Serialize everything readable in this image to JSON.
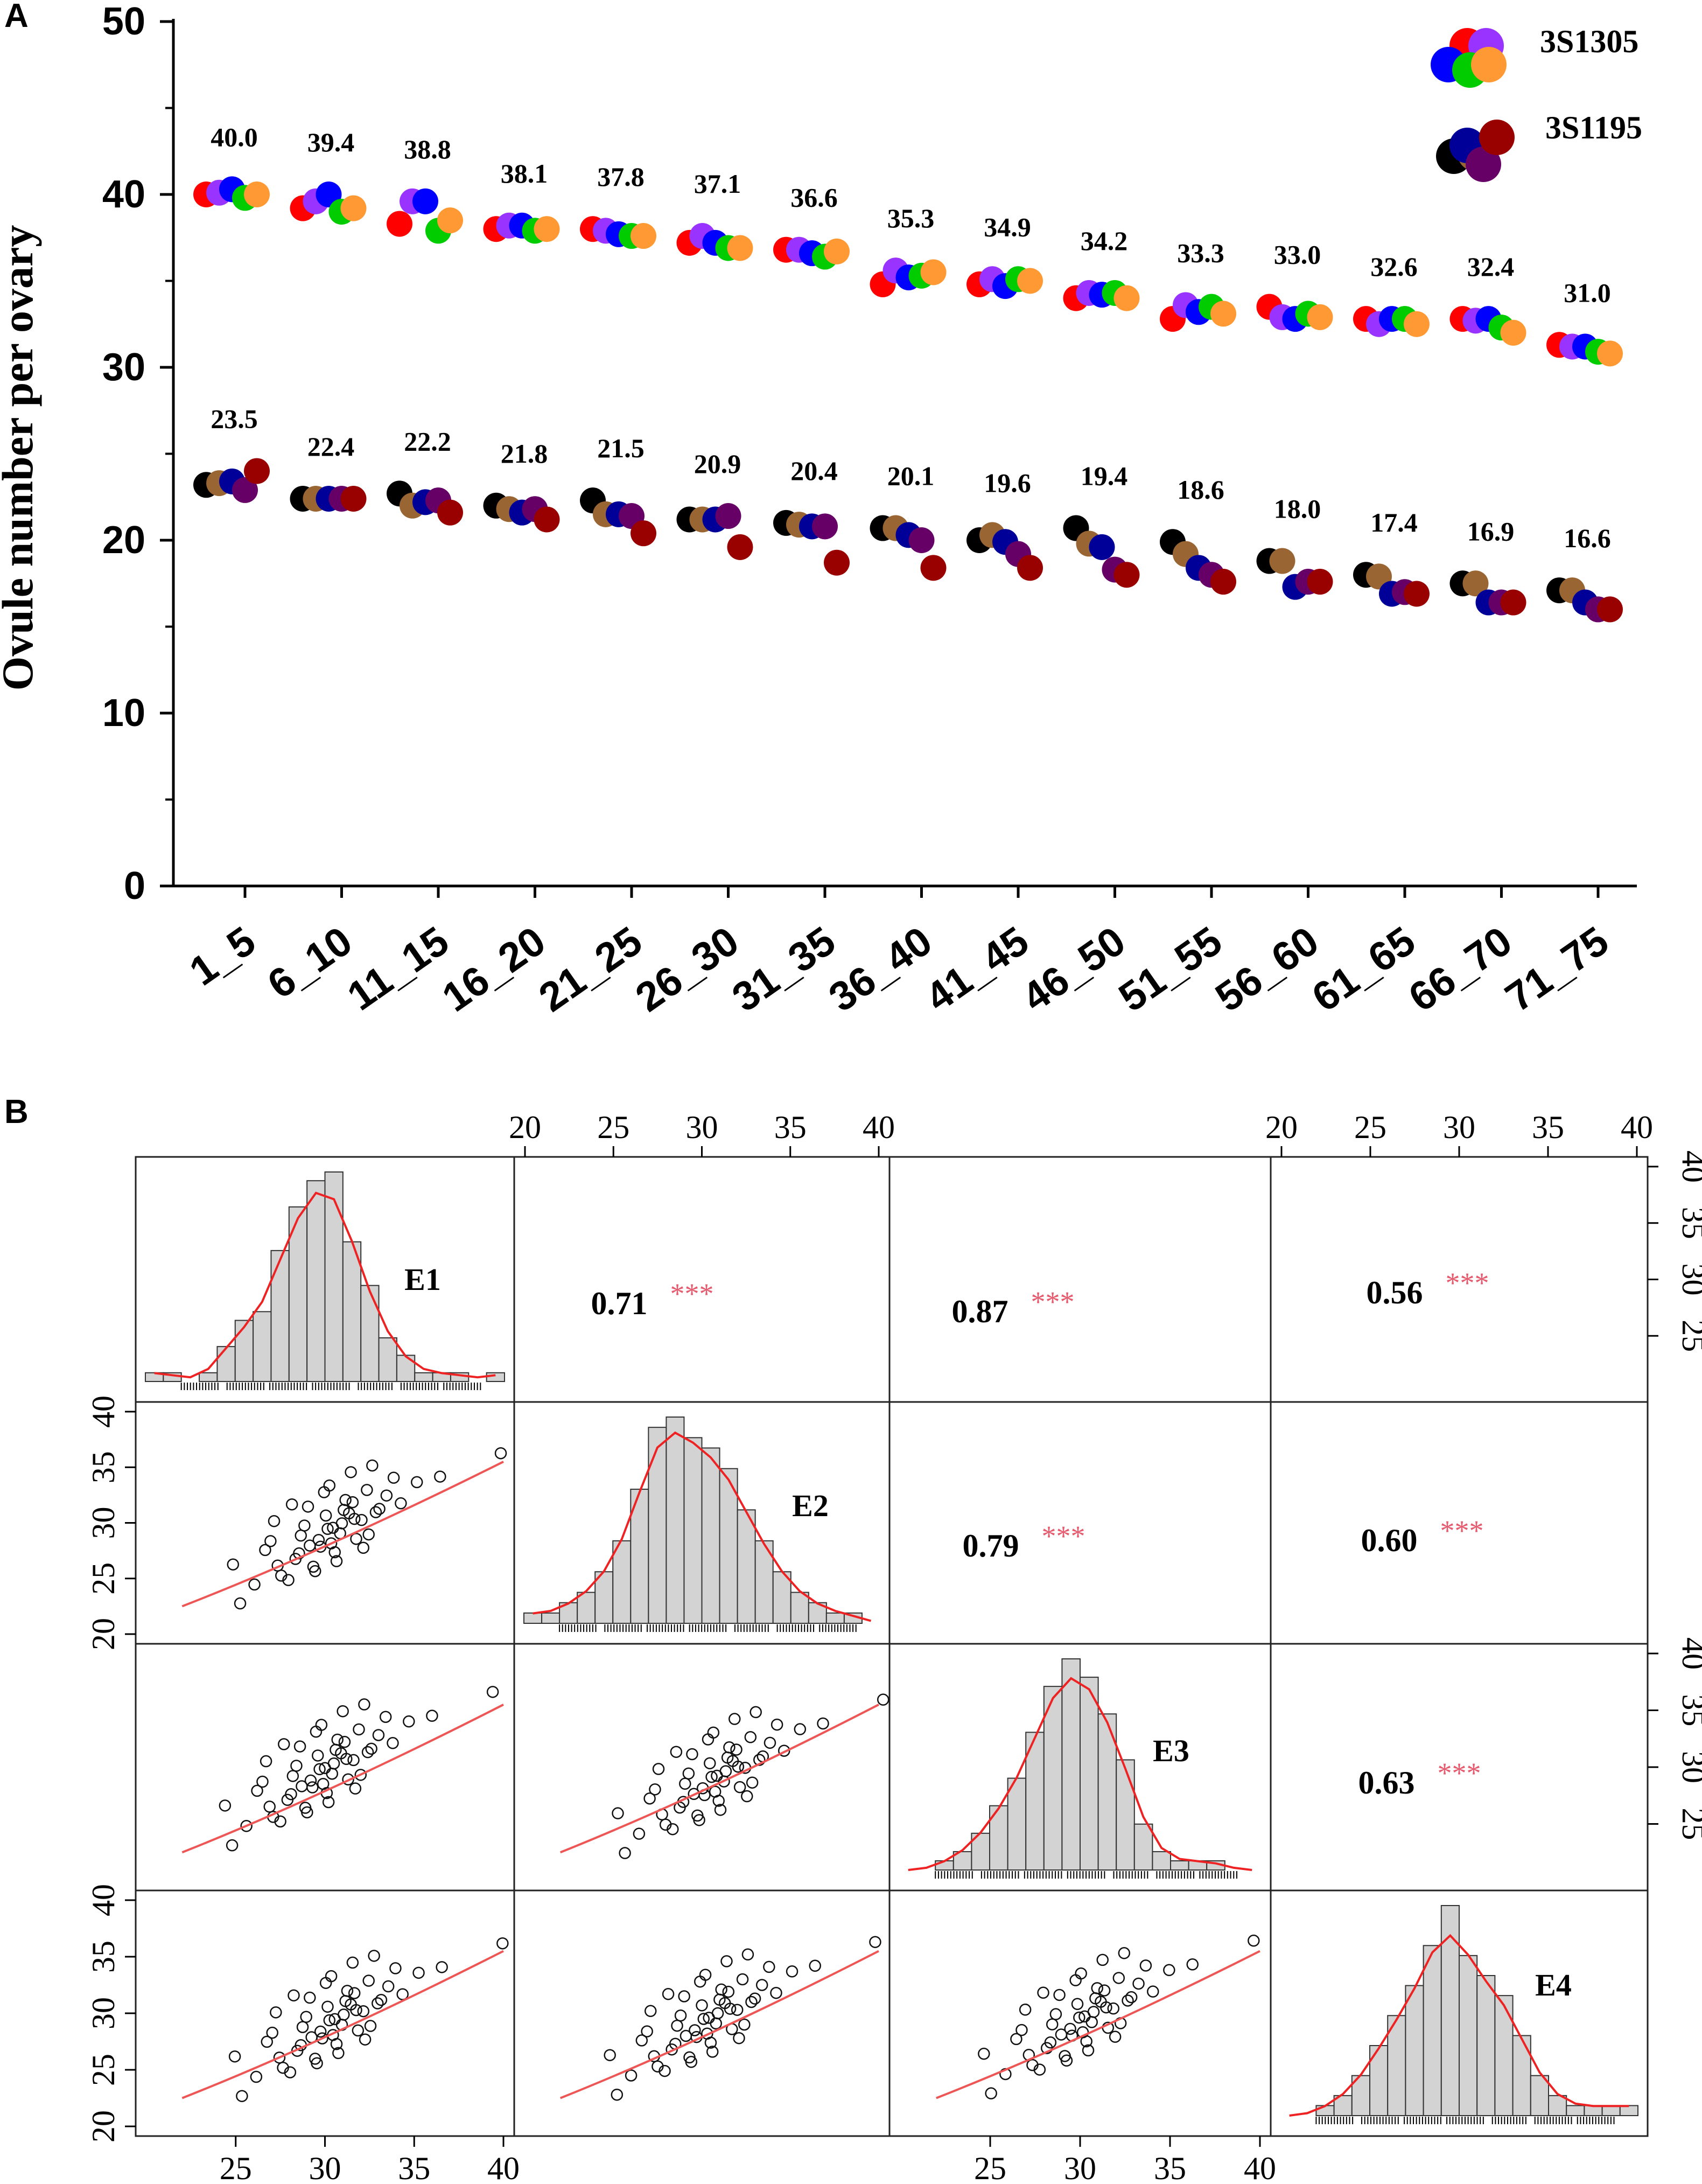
{
  "chart_data": [
    {
      "type": "scatter",
      "panel_label": "A",
      "title": "",
      "ylabel": "Ovule number per ovary",
      "xlabel": "",
      "ylim": [
        0,
        50
      ],
      "yticks": [
        "0",
        "10",
        "20",
        "30",
        "40",
        "50"
      ],
      "categories": [
        "1_5",
        "6_10",
        "11_15",
        "16_20",
        "21_25",
        "26_30",
        "31_35",
        "36_40",
        "41_45",
        "46_50",
        "51_55",
        "56_60",
        "61_65",
        "66_70",
        "71_75"
      ],
      "legend": [
        {
          "name": "3S1305",
          "colors": [
            "#ff0000",
            "#9933ff",
            "#0000ff",
            "#00cc00",
            "#ff9933"
          ]
        },
        {
          "name": "3S1195",
          "colors": [
            "#000000",
            "#996633",
            "#000099",
            "#660066",
            "#990000"
          ]
        }
      ],
      "series": [
        {
          "name": "3S1305",
          "mean_labels": [
            "40.0",
            "39.4",
            "38.8",
            "38.1",
            "37.8",
            "37.1",
            "36.6",
            "35.3",
            "34.9",
            "34.2",
            "33.3",
            "33.0",
            "32.6",
            "32.4",
            "31.0"
          ],
          "points": [
            [
              40.0,
              40.1,
              40.3,
              39.8,
              40.0
            ],
            [
              39.2,
              39.6,
              40.0,
              39.0,
              39.2
            ],
            [
              38.3,
              39.6,
              39.6,
              37.9,
              38.5
            ],
            [
              38.0,
              38.2,
              38.2,
              37.9,
              38.0
            ],
            [
              38.0,
              37.9,
              37.7,
              37.6,
              37.6
            ],
            [
              37.2,
              37.6,
              37.2,
              36.9,
              36.9
            ],
            [
              36.8,
              36.8,
              36.6,
              36.4,
              36.7
            ],
            [
              34.8,
              35.6,
              35.2,
              35.3,
              35.5
            ],
            [
              34.8,
              35.1,
              34.7,
              35.1,
              35.0
            ],
            [
              34.0,
              34.3,
              34.2,
              34.3,
              34.0
            ],
            [
              32.8,
              33.6,
              33.2,
              33.5,
              33.1
            ],
            [
              33.5,
              32.9,
              32.8,
              33.1,
              32.9
            ],
            [
              32.8,
              32.5,
              32.8,
              32.8,
              32.5
            ],
            [
              32.8,
              32.7,
              32.8,
              32.3,
              32.0
            ],
            [
              31.3,
              31.2,
              31.2,
              30.9,
              30.8
            ]
          ]
        },
        {
          "name": "3S1195",
          "mean_labels": [
            "23.5",
            "22.4",
            "22.2",
            "21.8",
            "21.5",
            "20.9",
            "20.4",
            "20.1",
            "19.6",
            "19.4",
            "18.6",
            "18.0",
            "17.4",
            "16.9",
            "16.6"
          ],
          "points": [
            [
              23.2,
              23.3,
              23.4,
              22.9,
              24.0
            ],
            [
              22.4,
              22.4,
              22.4,
              22.4,
              22.4
            ],
            [
              22.7,
              22.0,
              22.2,
              22.3,
              21.6
            ],
            [
              22.0,
              21.8,
              21.6,
              21.8,
              21.2
            ],
            [
              22.3,
              21.5,
              21.5,
              21.4,
              20.4
            ],
            [
              21.2,
              21.2,
              21.2,
              21.4,
              19.6
            ],
            [
              21.0,
              20.9,
              20.8,
              20.8,
              18.7
            ],
            [
              20.7,
              20.7,
              20.3,
              20.0,
              18.4
            ],
            [
              20.0,
              20.3,
              19.9,
              19.2,
              18.4
            ],
            [
              20.7,
              19.8,
              19.6,
              18.3,
              18.0
            ],
            [
              19.9,
              19.2,
              18.4,
              18.0,
              17.6
            ],
            [
              18.8,
              18.8,
              17.3,
              17.6,
              17.6
            ],
            [
              18.0,
              17.9,
              16.9,
              17.0,
              16.9
            ],
            [
              17.5,
              17.5,
              16.4,
              16.4,
              16.4
            ],
            [
              17.1,
              17.1,
              16.4,
              16.0,
              16.0
            ]
          ]
        }
      ]
    },
    {
      "type": "scatter",
      "subtype": "pairs-matrix",
      "panel_label": "B",
      "title": "",
      "variables": [
        "E1",
        "E2",
        "E3",
        "E4"
      ],
      "axis_range": [
        20,
        40
      ],
      "tick_labels": [
        "20",
        "25",
        "30",
        "35",
        "40"
      ],
      "significance": "***",
      "correlations": [
        {
          "pair": "E1-E2",
          "r": "0.71"
        },
        {
          "pair": "E1-E3",
          "r": "0.87"
        },
        {
          "pair": "E1-E4",
          "r": "0.56"
        },
        {
          "pair": "E2-E3",
          "r": "0.79"
        },
        {
          "pair": "E2-E4",
          "r": "0.60"
        },
        {
          "pair": "E3-E4",
          "r": "0.63"
        }
      ],
      "histograms": {
        "bin_edges": [
          20,
          21,
          22,
          23,
          24,
          25,
          26,
          27,
          28,
          29,
          30,
          31,
          32,
          33,
          34,
          35,
          36,
          37,
          38,
          39,
          40
        ],
        "E1": [
          1,
          1,
          0,
          1,
          4,
          7,
          8,
          15,
          20,
          23,
          24,
          16,
          11,
          5,
          3,
          1,
          1,
          1,
          0,
          1
        ],
        "E2": [
          1,
          1,
          2,
          3,
          5,
          8,
          13,
          19,
          20,
          18,
          17,
          15,
          11,
          8,
          5,
          3,
          2,
          1,
          1,
          0
        ],
        "E3": [
          0,
          0,
          1,
          2,
          4,
          7,
          10,
          15,
          20,
          23,
          21,
          17,
          12,
          5,
          2,
          1,
          1,
          1,
          0,
          0
        ],
        "E4": [
          0,
          0,
          1,
          2,
          4,
          7,
          10,
          13,
          17,
          21,
          16,
          14,
          12,
          8,
          4,
          2,
          1,
          1,
          1,
          1
        ]
      },
      "scatter_points": [
        [
          26.0,
          24.5
        ],
        [
          27.1,
          30.2
        ],
        [
          28.3,
          26.8
        ],
        [
          29.0,
          31.5
        ],
        [
          29.7,
          27.9
        ],
        [
          30.2,
          33.4
        ],
        [
          30.8,
          29.1
        ],
        [
          31.4,
          34.6
        ],
        [
          32.0,
          30.3
        ],
        [
          32.6,
          35.2
        ],
        [
          27.5,
          25.3
        ],
        [
          28.8,
          29.8
        ],
        [
          29.3,
          26.1
        ],
        [
          30.0,
          30.7
        ],
        [
          30.5,
          27.4
        ],
        [
          31.1,
          32.1
        ],
        [
          31.7,
          28.6
        ],
        [
          32.3,
          33.0
        ],
        [
          33.0,
          31.3
        ],
        [
          33.8,
          34.1
        ],
        [
          25.2,
          22.8
        ],
        [
          26.6,
          27.6
        ],
        [
          27.9,
          24.9
        ],
        [
          28.6,
          28.9
        ],
        [
          29.4,
          25.7
        ],
        [
          30.1,
          29.5
        ],
        [
          30.6,
          26.6
        ],
        [
          31.3,
          30.9
        ],
        [
          32.1,
          27.8
        ],
        [
          33.4,
          32.5
        ],
        [
          26.9,
          28.4
        ],
        [
          28.1,
          31.7
        ],
        [
          29.1,
          28.0
        ],
        [
          29.9,
          32.8
        ],
        [
          30.4,
          29.6
        ],
        [
          31.0,
          31.2
        ],
        [
          31.6,
          30.4
        ],
        [
          32.4,
          29.0
        ],
        [
          34.2,
          31.8
        ],
        [
          35.1,
          33.7
        ],
        [
          24.8,
          26.3
        ],
        [
          27.3,
          26.2
        ],
        [
          28.5,
          27.3
        ],
        [
          29.6,
          28.5
        ],
        [
          30.3,
          28.2
        ],
        [
          30.9,
          30.0
        ],
        [
          31.5,
          31.9
        ],
        [
          32.8,
          31.0
        ],
        [
          36.4,
          34.2
        ],
        [
          39.8,
          36.3
        ]
      ]
    }
  ]
}
